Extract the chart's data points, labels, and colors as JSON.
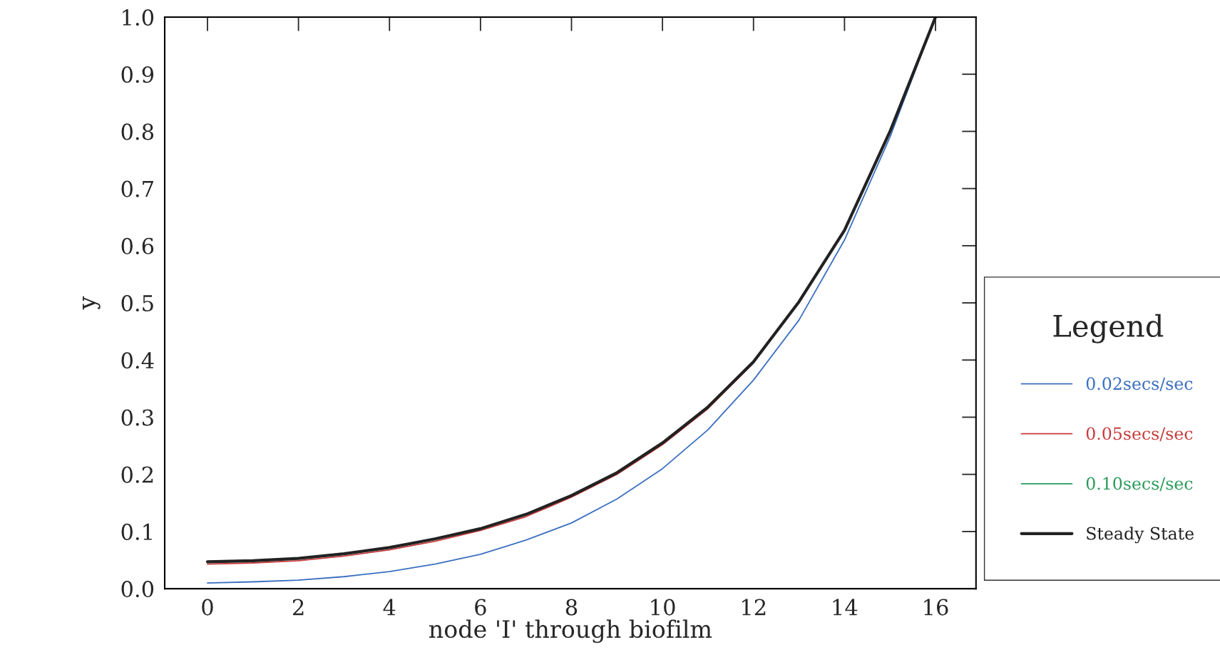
{
  "chart_data": {
    "type": "line",
    "xlabel": "node 'I' through biofilm",
    "ylabel": "y",
    "legend_title": "Legend",
    "x": [
      0,
      1,
      2,
      3,
      4,
      5,
      6,
      7,
      8,
      9,
      10,
      11,
      12,
      13,
      14,
      15,
      16
    ],
    "series": [
      {
        "name": "0.02secs/sec",
        "color": "#3a6fc0",
        "values": [
          0.01,
          0.012,
          0.015,
          0.021,
          0.03,
          0.043,
          0.06,
          0.085,
          0.115,
          0.157,
          0.21,
          0.278,
          0.365,
          0.47,
          0.61,
          0.79,
          1.0
        ]
      },
      {
        "name": "0.05secs/sec",
        "color": "#c83a3a",
        "values": [
          0.043,
          0.045,
          0.049,
          0.057,
          0.068,
          0.083,
          0.102,
          0.126,
          0.16,
          0.2,
          0.252,
          0.315,
          0.395,
          null,
          null,
          null,
          null
        ]
      },
      {
        "name": "0.10secs/sec",
        "color": "#2a9a5a",
        "values": [
          null,
          null,
          null,
          null,
          null,
          null,
          null,
          null,
          null,
          null,
          null,
          null,
          null,
          null,
          null,
          null,
          null
        ]
      },
      {
        "name": "Steady State",
        "color": "#222222",
        "values": [
          0.047,
          0.049,
          0.053,
          0.061,
          0.072,
          0.087,
          0.105,
          0.13,
          0.163,
          0.203,
          0.255,
          0.318,
          0.397,
          0.502,
          0.627,
          0.8,
          1.0
        ]
      }
    ],
    "xlim": [
      -0.94,
      16.89
    ],
    "ylim": [
      0,
      1.0
    ],
    "xticks": [
      0,
      2,
      4,
      6,
      8,
      10,
      12,
      14,
      16
    ],
    "yticks": [
      {
        "value": 0,
        "label": "0.0"
      },
      0.1,
      0.2,
      0.3,
      0.4,
      0.5,
      0.6,
      0.7,
      0.8,
      0.9,
      {
        "value": 1,
        "label": "1.0"
      }
    ],
    "legend": "right",
    "grid": false,
    "line_style": "solid"
  }
}
